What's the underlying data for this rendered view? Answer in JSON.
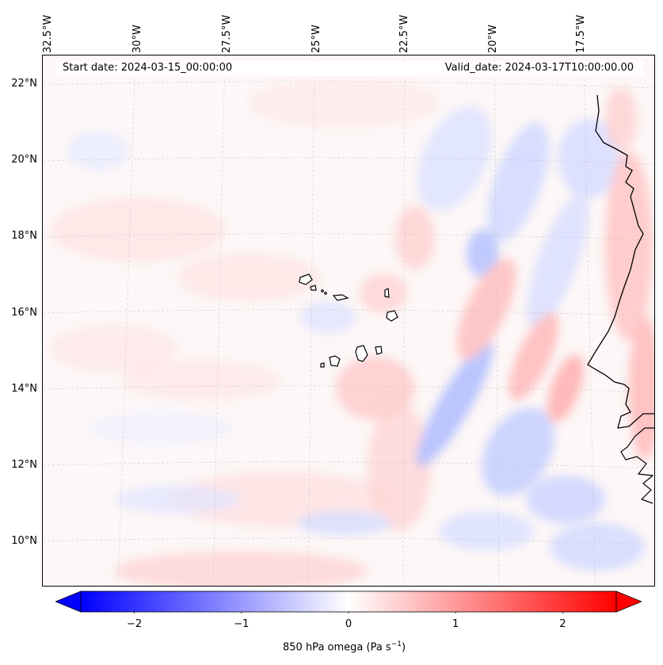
{
  "header": {
    "start_date": "Start date: 2024-03-15_00:00:00",
    "valid_date": "Valid_date: 2024-03-17T10:00:00.00"
  },
  "map": {
    "projection": "lambert",
    "lon_labels": [
      "32.5°W",
      "30°W",
      "27.5°W",
      "25°W",
      "22.5°W",
      "20°W",
      "17.5°W"
    ],
    "lat_labels": [
      "22°N",
      "20°N",
      "18°N",
      "16°N",
      "14°N",
      "12°N",
      "10°N"
    ],
    "features": [
      "coastline-west-africa",
      "cape-verde-islands"
    ]
  },
  "colorbar": {
    "title": "850 hPa omega (Pa s",
    "title_unit_sup": "−1",
    "title_close": ")",
    "ticks": [
      "−2",
      "−1",
      "0",
      "1",
      "2"
    ],
    "vmin": -2.5,
    "vmax": 2.5,
    "cmap": "bwr",
    "color_min": "#0000ff",
    "color_mid": "#ffffff",
    "color_max": "#ff0000"
  }
}
